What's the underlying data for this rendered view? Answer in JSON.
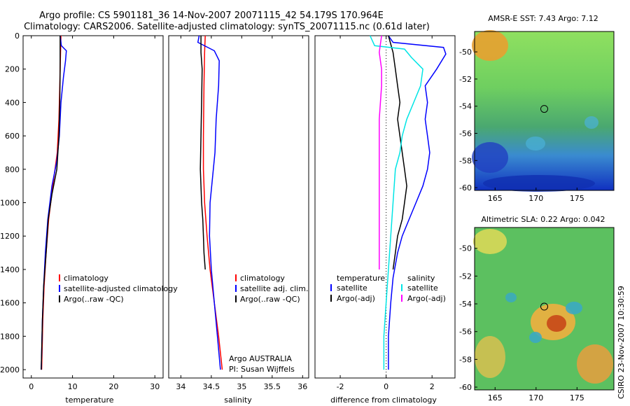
{
  "title_line1": "Argo profile: CS 5901181_36 14-Nov-2007 20071115_42 54.179S 170.964E",
  "title_line2": "Climatology: CARS2006. Satellite-adjusted climatology: synTS_20071115.nc (0.61d later)",
  "side_text": "CSIRO 23-Nov-2007 10:30:59",
  "colors": {
    "red": "#ff0000",
    "blue": "#0000ff",
    "black": "#000000",
    "cyan": "#00e5e5",
    "magenta": "#ff00ff"
  },
  "chart_data": [
    {
      "type": "line",
      "panel": "temperature",
      "xlabel": "temperature",
      "ylabel": "",
      "xlim": [
        -2,
        32
      ],
      "ylim": [
        2050,
        0
      ],
      "xticks": [
        0,
        10,
        20,
        30
      ],
      "yticks": [
        0,
        200,
        400,
        600,
        800,
        1000,
        1200,
        1400,
        1600,
        1800,
        2000
      ],
      "legend": [
        "climatology",
        "satellite-adjusted climatology",
        "Argo(..raw -QC)"
      ],
      "series": [
        {
          "name": "climatology",
          "color": "red",
          "points": [
            [
              7.2,
              0
            ],
            [
              7.1,
              100
            ],
            [
              7.0,
              200
            ],
            [
              6.9,
              300
            ],
            [
              6.7,
              500
            ],
            [
              6.3,
              700
            ],
            [
              5.2,
              900
            ],
            [
              4.2,
              1100
            ],
            [
              3.6,
              1300
            ],
            [
              3.1,
              1500
            ],
            [
              2.8,
              1700
            ],
            [
              2.6,
              1900
            ],
            [
              2.5,
              2000
            ]
          ]
        },
        {
          "name": "satellite-adjusted climatology",
          "color": "blue",
          "points": [
            [
              7.0,
              0
            ],
            [
              7.3,
              60
            ],
            [
              8.5,
              90
            ],
            [
              8.3,
              150
            ],
            [
              7.8,
              250
            ],
            [
              7.2,
              400
            ],
            [
              6.8,
              600
            ],
            [
              6.2,
              750
            ],
            [
              5.0,
              900
            ],
            [
              4.0,
              1100
            ],
            [
              3.4,
              1300
            ],
            [
              3.0,
              1500
            ],
            [
              2.7,
              1700
            ],
            [
              2.5,
              1900
            ],
            [
              2.4,
              2000
            ]
          ]
        },
        {
          "name": "Argo(..raw -QC)",
          "color": "black",
          "points": [
            [
              7.0,
              0
            ],
            [
              7.0,
              200
            ],
            [
              6.9,
              400
            ],
            [
              6.7,
              600
            ],
            [
              6.2,
              800
            ],
            [
              5.0,
              950
            ],
            [
              4.1,
              1100
            ],
            [
              3.6,
              1300
            ],
            [
              3.0,
              1500
            ],
            [
              2.7,
              1700
            ],
            [
              2.5,
              1900
            ],
            [
              2.4,
              2000
            ]
          ]
        }
      ]
    },
    {
      "type": "line",
      "panel": "salinity",
      "xlabel": "salinity",
      "xlim": [
        33.8,
        36.1
      ],
      "ylim": [
        2050,
        0
      ],
      "xticks": [
        34,
        34.5,
        35,
        35.5,
        36
      ],
      "xticklabels": [
        "34",
        "34.5",
        "35",
        "35.5",
        "36"
      ],
      "legend": [
        "climatology",
        "satellite adj. clim.",
        "Argo(..raw -QC)"
      ],
      "annotations": [
        "Argo AUSTRALIA",
        "PI: Susan Wijffels"
      ],
      "series": [
        {
          "name": "climatology",
          "color": "red",
          "points": [
            [
              34.4,
              0
            ],
            [
              34.39,
              100
            ],
            [
              34.38,
              300
            ],
            [
              34.37,
              600
            ],
            [
              34.37,
              800
            ],
            [
              34.39,
              1000
            ],
            [
              34.43,
              1200
            ],
            [
              34.48,
              1400
            ],
            [
              34.55,
              1600
            ],
            [
              34.62,
              1800
            ],
            [
              34.68,
              2000
            ]
          ]
        },
        {
          "name": "satellite adj. clim.",
          "color": "blue",
          "points": [
            [
              34.3,
              0
            ],
            [
              34.28,
              40
            ],
            [
              34.55,
              90
            ],
            [
              34.63,
              150
            ],
            [
              34.62,
              300
            ],
            [
              34.58,
              500
            ],
            [
              34.56,
              700
            ],
            [
              34.52,
              850
            ],
            [
              34.48,
              1000
            ],
            [
              34.47,
              1200
            ],
            [
              34.5,
              1400
            ],
            [
              34.55,
              1600
            ],
            [
              34.6,
              1800
            ],
            [
              34.65,
              2000
            ]
          ]
        },
        {
          "name": "Argo(..raw -QC)",
          "color": "black",
          "points": [
            [
              34.33,
              0
            ],
            [
              34.33,
              100
            ],
            [
              34.35,
              200
            ],
            [
              34.34,
              400
            ],
            [
              34.33,
              600
            ],
            [
              34.32,
              800
            ],
            [
              34.34,
              1000
            ],
            [
              34.36,
              1100
            ],
            [
              34.37,
              1200
            ],
            [
              34.38,
              1300
            ],
            [
              34.4,
              1400
            ]
          ]
        }
      ]
    },
    {
      "type": "line",
      "panel": "difference",
      "xlabel": "difference from climatology",
      "xlim": [
        -3.1,
        3.0
      ],
      "ylim": [
        2050,
        0
      ],
      "xticks": [
        -2,
        0,
        2
      ],
      "legend_headers": [
        "temperature",
        "salinity"
      ],
      "legend": [
        "satellite",
        "Argo(-adj)",
        "satellite",
        "Argo(-adj)"
      ],
      "series": [
        {
          "name": "temperature satellite",
          "color": "blue",
          "points": [
            [
              0.1,
              0
            ],
            [
              0.3,
              40
            ],
            [
              2.5,
              70
            ],
            [
              2.6,
              110
            ],
            [
              2.2,
              200
            ],
            [
              1.7,
              300
            ],
            [
              1.8,
              400
            ],
            [
              1.7,
              500
            ],
            [
              1.8,
              600
            ],
            [
              1.9,
              700
            ],
            [
              1.8,
              800
            ],
            [
              1.6,
              900
            ],
            [
              1.3,
              1000
            ],
            [
              1.0,
              1100
            ],
            [
              0.7,
              1200
            ],
            [
              0.5,
              1300
            ],
            [
              0.3,
              1450
            ],
            [
              0.2,
              1600
            ],
            [
              0.1,
              1800
            ],
            [
              0.1,
              2000
            ]
          ]
        },
        {
          "name": "temperature Argo(-adj)",
          "color": "black",
          "points": [
            [
              0.1,
              0
            ],
            [
              0.3,
              100
            ],
            [
              0.4,
              200
            ],
            [
              0.5,
              300
            ],
            [
              0.6,
              400
            ],
            [
              0.5,
              500
            ],
            [
              0.6,
              600
            ],
            [
              0.7,
              700
            ],
            [
              0.8,
              800
            ],
            [
              0.9,
              900
            ],
            [
              0.8,
              1000
            ],
            [
              0.7,
              1100
            ],
            [
              0.5,
              1200
            ],
            [
              0.4,
              1300
            ],
            [
              0.3,
              1400
            ]
          ]
        },
        {
          "name": "salinity satellite",
          "color": "cyan",
          "points": [
            [
              -0.7,
              0
            ],
            [
              -0.5,
              60
            ],
            [
              0.8,
              80
            ],
            [
              1.1,
              130
            ],
            [
              1.6,
              200
            ],
            [
              1.5,
              300
            ],
            [
              1.2,
              400
            ],
            [
              0.9,
              500
            ],
            [
              0.7,
              600
            ],
            [
              0.6,
              700
            ],
            [
              0.4,
              800
            ],
            [
              0.3,
              1000
            ],
            [
              0.2,
              1200
            ],
            [
              0.1,
              1400
            ],
            [
              0.0,
              1600
            ],
            [
              -0.1,
              1800
            ],
            [
              -0.1,
              2000
            ]
          ]
        },
        {
          "name": "salinity Argo(-adj)",
          "color": "magenta",
          "points": [
            [
              -0.2,
              0
            ],
            [
              -0.3,
              100
            ],
            [
              -0.2,
              200
            ],
            [
              -0.2,
              300
            ],
            [
              -0.3,
              500
            ],
            [
              -0.3,
              700
            ],
            [
              -0.3,
              900
            ],
            [
              -0.3,
              1100
            ],
            [
              -0.3,
              1300
            ],
            [
              -0.3,
              1400
            ]
          ]
        }
      ]
    },
    {
      "type": "heatmap",
      "panel": "map_sst",
      "title": "AMSR-E SST: 7.43 Argo: 7.12",
      "xlim": [
        162.5,
        179.5
      ],
      "ylim": [
        -60.2,
        -48.5
      ],
      "xticks": [
        165,
        170,
        175
      ],
      "yticks": [
        -50,
        -52,
        -54,
        -56,
        -58,
        -60
      ],
      "marker": {
        "lon": 171.0,
        "lat": -54.2
      }
    },
    {
      "type": "heatmap",
      "panel": "map_sla",
      "title": "Altimetric SLA: 0.22 Argo: 0.042",
      "xlim": [
        162.5,
        179.5
      ],
      "ylim": [
        -60.2,
        -48.5
      ],
      "xticks": [
        165,
        170,
        175
      ],
      "yticks": [
        -50,
        -52,
        -54,
        -56,
        -58,
        -60
      ],
      "marker": {
        "lon": 171.0,
        "lat": -54.2
      }
    }
  ]
}
